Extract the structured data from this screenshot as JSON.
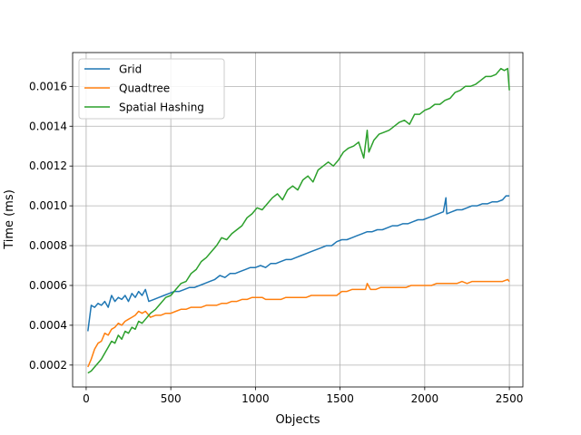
{
  "chart_data": {
    "type": "line",
    "title": "",
    "xlabel": "Objects",
    "ylabel": "Time (ms)",
    "xlim": [
      -80,
      2580
    ],
    "ylim": [
      9e-05,
      0.00177
    ],
    "xticks": [
      0,
      500,
      1000,
      1500,
      2000,
      2500
    ],
    "yticks": [
      0.0002,
      0.0004,
      0.0006,
      0.0008,
      0.001,
      0.0012,
      0.0014,
      0.0016
    ],
    "xtick_labels": [
      "0",
      "500",
      "1000",
      "1500",
      "2000",
      "2500"
    ],
    "ytick_labels": [
      "0.0002",
      "0.0004",
      "0.0006",
      "0.0008",
      "0.0010",
      "0.0012",
      "0.0014",
      "0.0016"
    ],
    "grid": true,
    "legend": "top-left",
    "series": [
      {
        "name": "Grid",
        "color": "#1f77b4",
        "x": [
          10,
          30,
          50,
          70,
          90,
          110,
          130,
          150,
          170,
          190,
          210,
          230,
          250,
          270,
          290,
          310,
          330,
          350,
          370,
          400,
          430,
          460,
          490,
          520,
          550,
          580,
          610,
          640,
          670,
          700,
          730,
          760,
          790,
          820,
          850,
          880,
          910,
          940,
          970,
          1000,
          1030,
          1060,
          1090,
          1120,
          1150,
          1180,
          1210,
          1240,
          1270,
          1300,
          1330,
          1360,
          1390,
          1420,
          1450,
          1480,
          1510,
          1540,
          1570,
          1600,
          1630,
          1660,
          1690,
          1720,
          1750,
          1780,
          1810,
          1840,
          1870,
          1900,
          1930,
          1960,
          1990,
          2020,
          2050,
          2080,
          2110,
          2125,
          2130,
          2160,
          2190,
          2220,
          2250,
          2280,
          2310,
          2340,
          2370,
          2400,
          2430,
          2460,
          2480,
          2500
        ],
        "values": [
          0.00037,
          0.0005,
          0.00049,
          0.00051,
          0.0005,
          0.00052,
          0.00049,
          0.00055,
          0.00052,
          0.00054,
          0.00053,
          0.00055,
          0.00052,
          0.00056,
          0.00054,
          0.00057,
          0.00055,
          0.00058,
          0.00052,
          0.00053,
          0.00054,
          0.00055,
          0.00056,
          0.00057,
          0.00057,
          0.00058,
          0.00059,
          0.00059,
          0.0006,
          0.00061,
          0.00062,
          0.00063,
          0.00065,
          0.00064,
          0.00066,
          0.00066,
          0.00067,
          0.00068,
          0.00069,
          0.00069,
          0.0007,
          0.00069,
          0.00071,
          0.00071,
          0.00072,
          0.00073,
          0.00073,
          0.00074,
          0.00075,
          0.00076,
          0.00077,
          0.00078,
          0.00079,
          0.0008,
          0.0008,
          0.00082,
          0.00083,
          0.00083,
          0.00084,
          0.00085,
          0.00086,
          0.00087,
          0.00087,
          0.00088,
          0.00088,
          0.00089,
          0.0009,
          0.0009,
          0.00091,
          0.00091,
          0.00092,
          0.00093,
          0.00093,
          0.00094,
          0.00095,
          0.00096,
          0.00097,
          0.00104,
          0.00096,
          0.00097,
          0.00098,
          0.00098,
          0.00099,
          0.001,
          0.001,
          0.00101,
          0.00101,
          0.00102,
          0.00102,
          0.00103,
          0.00105,
          0.00105
        ]
      },
      {
        "name": "Quadtree",
        "color": "#ff7f0e",
        "x": [
          10,
          30,
          50,
          70,
          90,
          110,
          130,
          150,
          170,
          190,
          210,
          230,
          250,
          270,
          290,
          310,
          330,
          350,
          380,
          410,
          440,
          470,
          500,
          530,
          560,
          590,
          620,
          650,
          680,
          710,
          740,
          770,
          800,
          830,
          860,
          890,
          920,
          950,
          980,
          1010,
          1040,
          1060,
          1090,
          1120,
          1150,
          1180,
          1210,
          1240,
          1270,
          1300,
          1330,
          1360,
          1390,
          1420,
          1450,
          1480,
          1510,
          1540,
          1570,
          1600,
          1630,
          1650,
          1660,
          1680,
          1710,
          1740,
          1770,
          1800,
          1830,
          1860,
          1890,
          1920,
          1950,
          1980,
          2010,
          2040,
          2070,
          2100,
          2130,
          2160,
          2190,
          2220,
          2250,
          2280,
          2310,
          2340,
          2370,
          2400,
          2430,
          2460,
          2490,
          2500
        ],
        "values": [
          0.00019,
          0.00023,
          0.00028,
          0.00031,
          0.00032,
          0.00036,
          0.00035,
          0.00038,
          0.00039,
          0.00041,
          0.0004,
          0.00042,
          0.00043,
          0.00044,
          0.00045,
          0.00047,
          0.00046,
          0.00047,
          0.00044,
          0.00045,
          0.00045,
          0.00046,
          0.00046,
          0.00047,
          0.00048,
          0.00048,
          0.00049,
          0.00049,
          0.00049,
          0.0005,
          0.0005,
          0.0005,
          0.00051,
          0.00051,
          0.00052,
          0.00052,
          0.00053,
          0.00053,
          0.00054,
          0.00054,
          0.00054,
          0.00053,
          0.00053,
          0.00053,
          0.00053,
          0.00054,
          0.00054,
          0.00054,
          0.00054,
          0.00054,
          0.00055,
          0.00055,
          0.00055,
          0.00055,
          0.00055,
          0.00055,
          0.00057,
          0.00057,
          0.00058,
          0.00058,
          0.00058,
          0.00058,
          0.00061,
          0.00058,
          0.00058,
          0.00059,
          0.00059,
          0.00059,
          0.00059,
          0.00059,
          0.00059,
          0.0006,
          0.0006,
          0.0006,
          0.0006,
          0.0006,
          0.00061,
          0.00061,
          0.00061,
          0.00061,
          0.00061,
          0.00062,
          0.00061,
          0.00062,
          0.00062,
          0.00062,
          0.00062,
          0.00062,
          0.00062,
          0.00062,
          0.00063,
          0.00062
        ]
      },
      {
        "name": "Spatial Hashing",
        "color": "#2ca02c",
        "x": [
          10,
          30,
          50,
          70,
          90,
          110,
          130,
          150,
          170,
          190,
          210,
          230,
          250,
          270,
          290,
          310,
          330,
          350,
          380,
          410,
          440,
          470,
          500,
          530,
          560,
          590,
          620,
          650,
          680,
          710,
          740,
          770,
          800,
          830,
          860,
          890,
          920,
          950,
          980,
          1010,
          1040,
          1070,
          1100,
          1130,
          1160,
          1190,
          1220,
          1250,
          1280,
          1310,
          1340,
          1370,
          1400,
          1430,
          1460,
          1490,
          1520,
          1550,
          1580,
          1610,
          1640,
          1660,
          1670,
          1700,
          1730,
          1760,
          1790,
          1820,
          1850,
          1880,
          1910,
          1940,
          1970,
          2000,
          2030,
          2060,
          2090,
          2120,
          2150,
          2180,
          2210,
          2240,
          2270,
          2300,
          2330,
          2360,
          2390,
          2420,
          2450,
          2470,
          2490,
          2500
        ],
        "values": [
          0.00016,
          0.00017,
          0.00019,
          0.00021,
          0.00023,
          0.00026,
          0.00029,
          0.00032,
          0.00031,
          0.00035,
          0.00033,
          0.00037,
          0.00036,
          0.00039,
          0.00038,
          0.00042,
          0.00041,
          0.00043,
          0.00046,
          0.00048,
          0.00051,
          0.00054,
          0.00055,
          0.00058,
          0.00061,
          0.00062,
          0.00066,
          0.00068,
          0.00072,
          0.00074,
          0.00077,
          0.0008,
          0.00084,
          0.00083,
          0.00086,
          0.00088,
          0.0009,
          0.00094,
          0.00096,
          0.00099,
          0.00098,
          0.00101,
          0.00104,
          0.00106,
          0.00103,
          0.00108,
          0.0011,
          0.00108,
          0.00113,
          0.00115,
          0.00112,
          0.00118,
          0.0012,
          0.00122,
          0.0012,
          0.00123,
          0.00127,
          0.00129,
          0.0013,
          0.00132,
          0.00124,
          0.00138,
          0.00127,
          0.00133,
          0.00136,
          0.00137,
          0.00138,
          0.0014,
          0.00142,
          0.00143,
          0.00141,
          0.00146,
          0.00146,
          0.00148,
          0.00149,
          0.00151,
          0.00151,
          0.00153,
          0.00154,
          0.00157,
          0.00158,
          0.0016,
          0.0016,
          0.00161,
          0.00163,
          0.00165,
          0.00165,
          0.00166,
          0.00169,
          0.00168,
          0.00169,
          0.00158
        ]
      }
    ]
  }
}
